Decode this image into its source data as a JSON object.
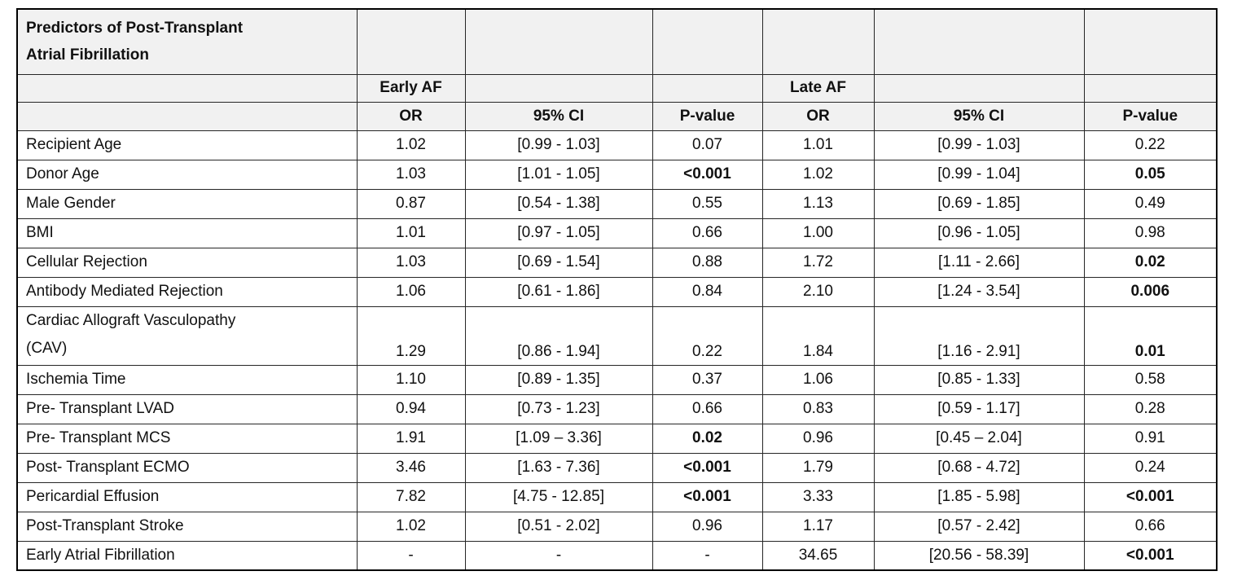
{
  "table": {
    "title": "Predictors of Post-Transplant\nAtrial Fibrillation",
    "group_headers": {
      "early": "Early AF",
      "late": "Late AF"
    },
    "col_headers": {
      "or": "OR",
      "ci": "95% CI",
      "p": "P-value"
    },
    "rows": [
      {
        "cells": [
          "Recipient Age",
          "1.02",
          "[0.99 - 1.03]",
          "0.07",
          "1.01",
          "[0.99 - 1.03]",
          "0.22"
        ],
        "bold": []
      },
      {
        "cells": [
          "Donor Age",
          "1.03",
          "[1.01 - 1.05]",
          "<0.001",
          "1.02",
          "[0.99 - 1.04]",
          "0.05"
        ],
        "bold": [
          3,
          6
        ]
      },
      {
        "cells": [
          "Male Gender",
          "0.87",
          "[0.54 - 1.38]",
          "0.55",
          "1.13",
          "[0.69 - 1.85]",
          "0.49"
        ],
        "bold": []
      },
      {
        "cells": [
          "BMI",
          "1.01",
          "[0.97 - 1.05]",
          "0.66",
          "1.00",
          "[0.96 - 1.05]",
          "0.98"
        ],
        "bold": []
      },
      {
        "cells": [
          "Cellular Rejection",
          "1.03",
          "[0.69 - 1.54]",
          "0.88",
          "1.72",
          "[1.11 - 2.66]",
          "0.02"
        ],
        "bold": [
          6
        ]
      },
      {
        "cells": [
          "Antibody Mediated Rejection",
          "1.06",
          "[0.61 - 1.86]",
          "0.84",
          "2.10",
          "[1.24 - 3.54]",
          "0.006"
        ],
        "bold": [
          6
        ]
      },
      {
        "cells": [
          "Cardiac Allograft Vasculopathy\n(CAV)",
          "1.29",
          "[0.86 - 1.94]",
          "0.22",
          "1.84",
          "[1.16 - 2.91]",
          "0.01"
        ],
        "bold": [
          6
        ],
        "tall": true
      },
      {
        "cells": [
          "Ischemia Time",
          "1.10",
          "[0.89 - 1.35]",
          "0.37",
          "1.06",
          "[0.85 - 1.33]",
          "0.58"
        ],
        "bold": []
      },
      {
        "cells": [
          "Pre- Transplant LVAD",
          "0.94",
          "[0.73 - 1.23]",
          "0.66",
          "0.83",
          "[0.59 - 1.17]",
          "0.28"
        ],
        "bold": []
      },
      {
        "cells": [
          "Pre- Transplant MCS",
          "1.91",
          "[1.09 – 3.36]",
          "0.02",
          "0.96",
          "[0.45 – 2.04]",
          "0.91"
        ],
        "bold": [
          3
        ]
      },
      {
        "cells": [
          "Post- Transplant ECMO",
          "3.46",
          "[1.63 - 7.36]",
          "<0.001",
          "1.79",
          "[0.68 - 4.72]",
          "0.24"
        ],
        "bold": [
          3
        ]
      },
      {
        "cells": [
          "Pericardial Effusion",
          "7.82",
          "[4.75 - 12.85]",
          "<0.001",
          "3.33",
          "[1.85 - 5.98]",
          "<0.001"
        ],
        "bold": [
          3,
          6
        ]
      },
      {
        "cells": [
          "Post-Transplant Stroke",
          "1.02",
          "[0.51 - 2.02]",
          "0.96",
          "1.17",
          "[0.57 - 2.42]",
          "0.66"
        ],
        "bold": []
      },
      {
        "cells": [
          "Early Atrial Fibrillation",
          "-",
          "-",
          "-",
          "34.65",
          "[20.56 - 58.39]",
          "<0.001"
        ],
        "bold": [
          6
        ]
      }
    ]
  },
  "colors": {
    "header_bg": "#f1f1f1",
    "inner_border": "#262626",
    "outer_border": "#000000",
    "text": "#111111"
  }
}
